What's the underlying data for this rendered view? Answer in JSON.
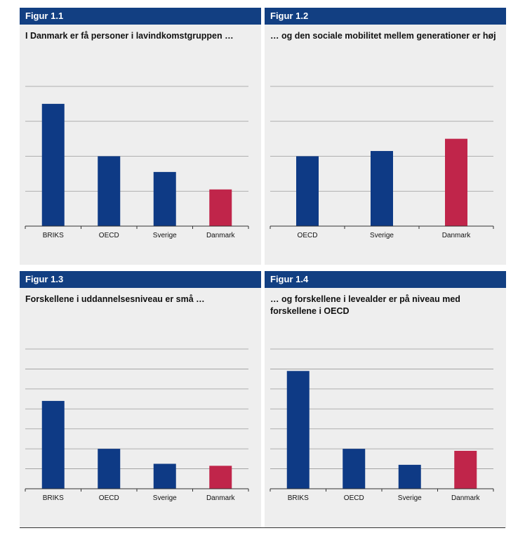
{
  "colors": {
    "header_bg": "#123f82",
    "bar_default": "#0e3a85",
    "bar_highlight": "#c0254a",
    "panel_bg": "#eeeeee"
  },
  "figures": [
    {
      "label": "Figur 1.1",
      "title": "I Danmark er få personer i lavindkomstgruppen …"
    },
    {
      "label": "Figur 1.2",
      "title": "… og den sociale mobilitet mellem generationer er høj"
    },
    {
      "label": "Figur 1.3",
      "title": "Forskellene i uddannelsesniveau er små …"
    },
    {
      "label": "Figur 1.4",
      "title": "… og forskellene i levealder er på niveau med forskellene i OECD"
    }
  ],
  "chart_data": [
    {
      "type": "bar",
      "categories": [
        "BRIKS",
        "OECD",
        "Sverige",
        "Danmark"
      ],
      "values": [
        3.5,
        2.0,
        1.55,
        1.05
      ],
      "highlight": "Danmark",
      "ylim": [
        0,
        4
      ],
      "gridlines": 4,
      "grid": true
    },
    {
      "type": "bar",
      "categories": [
        "OECD",
        "Sverige",
        "Danmark"
      ],
      "values": [
        2.0,
        2.15,
        2.5
      ],
      "highlight": "Danmark",
      "ylim": [
        0,
        4
      ],
      "gridlines": 4,
      "grid": true
    },
    {
      "type": "bar",
      "categories": [
        "BRIKS",
        "OECD",
        "Sverige",
        "Danmark"
      ],
      "values": [
        4.4,
        2.0,
        1.25,
        1.15
      ],
      "highlight": "Danmark",
      "ylim": [
        0,
        7
      ],
      "gridlines": 7,
      "grid": true
    },
    {
      "type": "bar",
      "categories": [
        "BRIKS",
        "OECD",
        "Sverige",
        "Danmark"
      ],
      "values": [
        5.9,
        2.0,
        1.2,
        1.9
      ],
      "highlight": "Danmark",
      "ylim": [
        0,
        7
      ],
      "gridlines": 7,
      "grid": true
    }
  ]
}
